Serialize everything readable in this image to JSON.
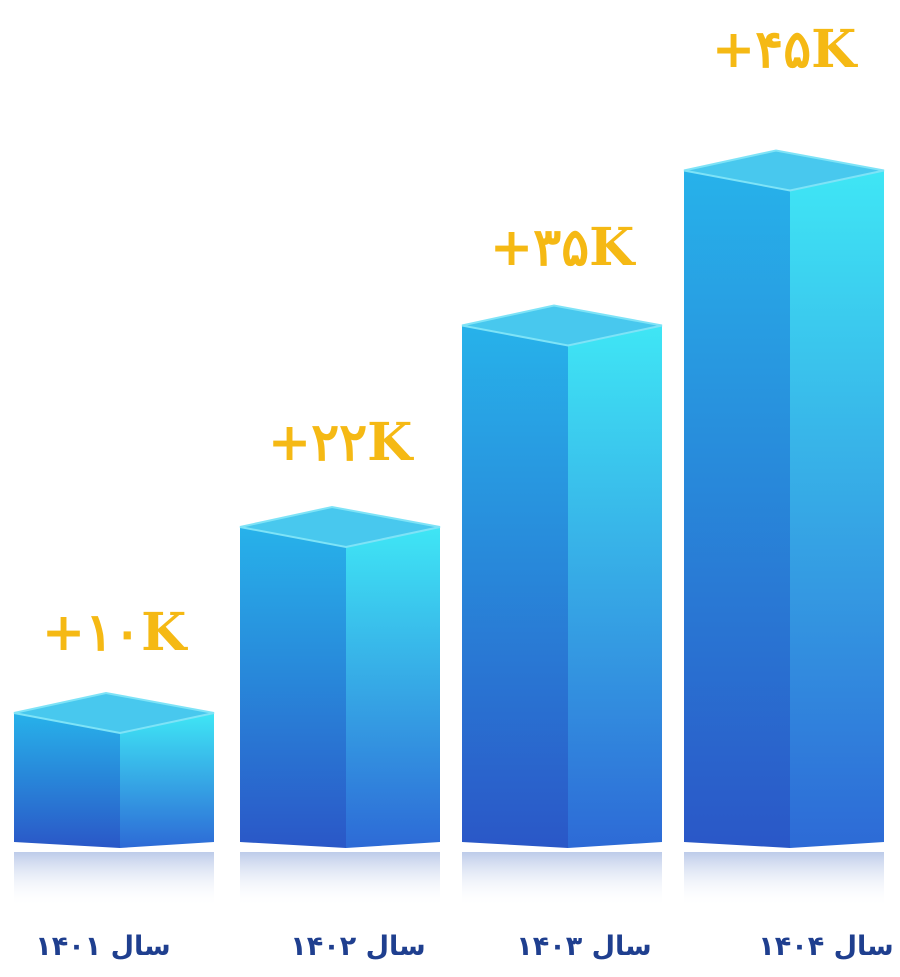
{
  "chart_data": {
    "type": "bar",
    "style": "3d-columns",
    "categories": [
      "سال ۱۴۰۱",
      "سال ۱۴۰۲",
      "سال ۱۴۰۳",
      "سال ۱۴۰۴"
    ],
    "values": [
      10000,
      22000,
      35000,
      45000
    ],
    "data_labels": [
      "+۱۰K",
      "+۲۲K",
      "+۳۵K",
      "+۴۵K"
    ],
    "title": "",
    "xlabel": "",
    "ylabel": "",
    "grid": false,
    "legend": "none",
    "colors": {
      "bar_front_light": "#27b2ea",
      "bar_front_dark": "#2a57c7",
      "bar_side_light": "#3fe6f5",
      "bar_side_dark": "#2d6ad6",
      "bar_top": "#48c8ee",
      "bar_top_edge": "#7ee3f7",
      "reflection": "#b9c8e8",
      "value_label": "#f5b914",
      "category_label": "#1f3f8f"
    }
  }
}
